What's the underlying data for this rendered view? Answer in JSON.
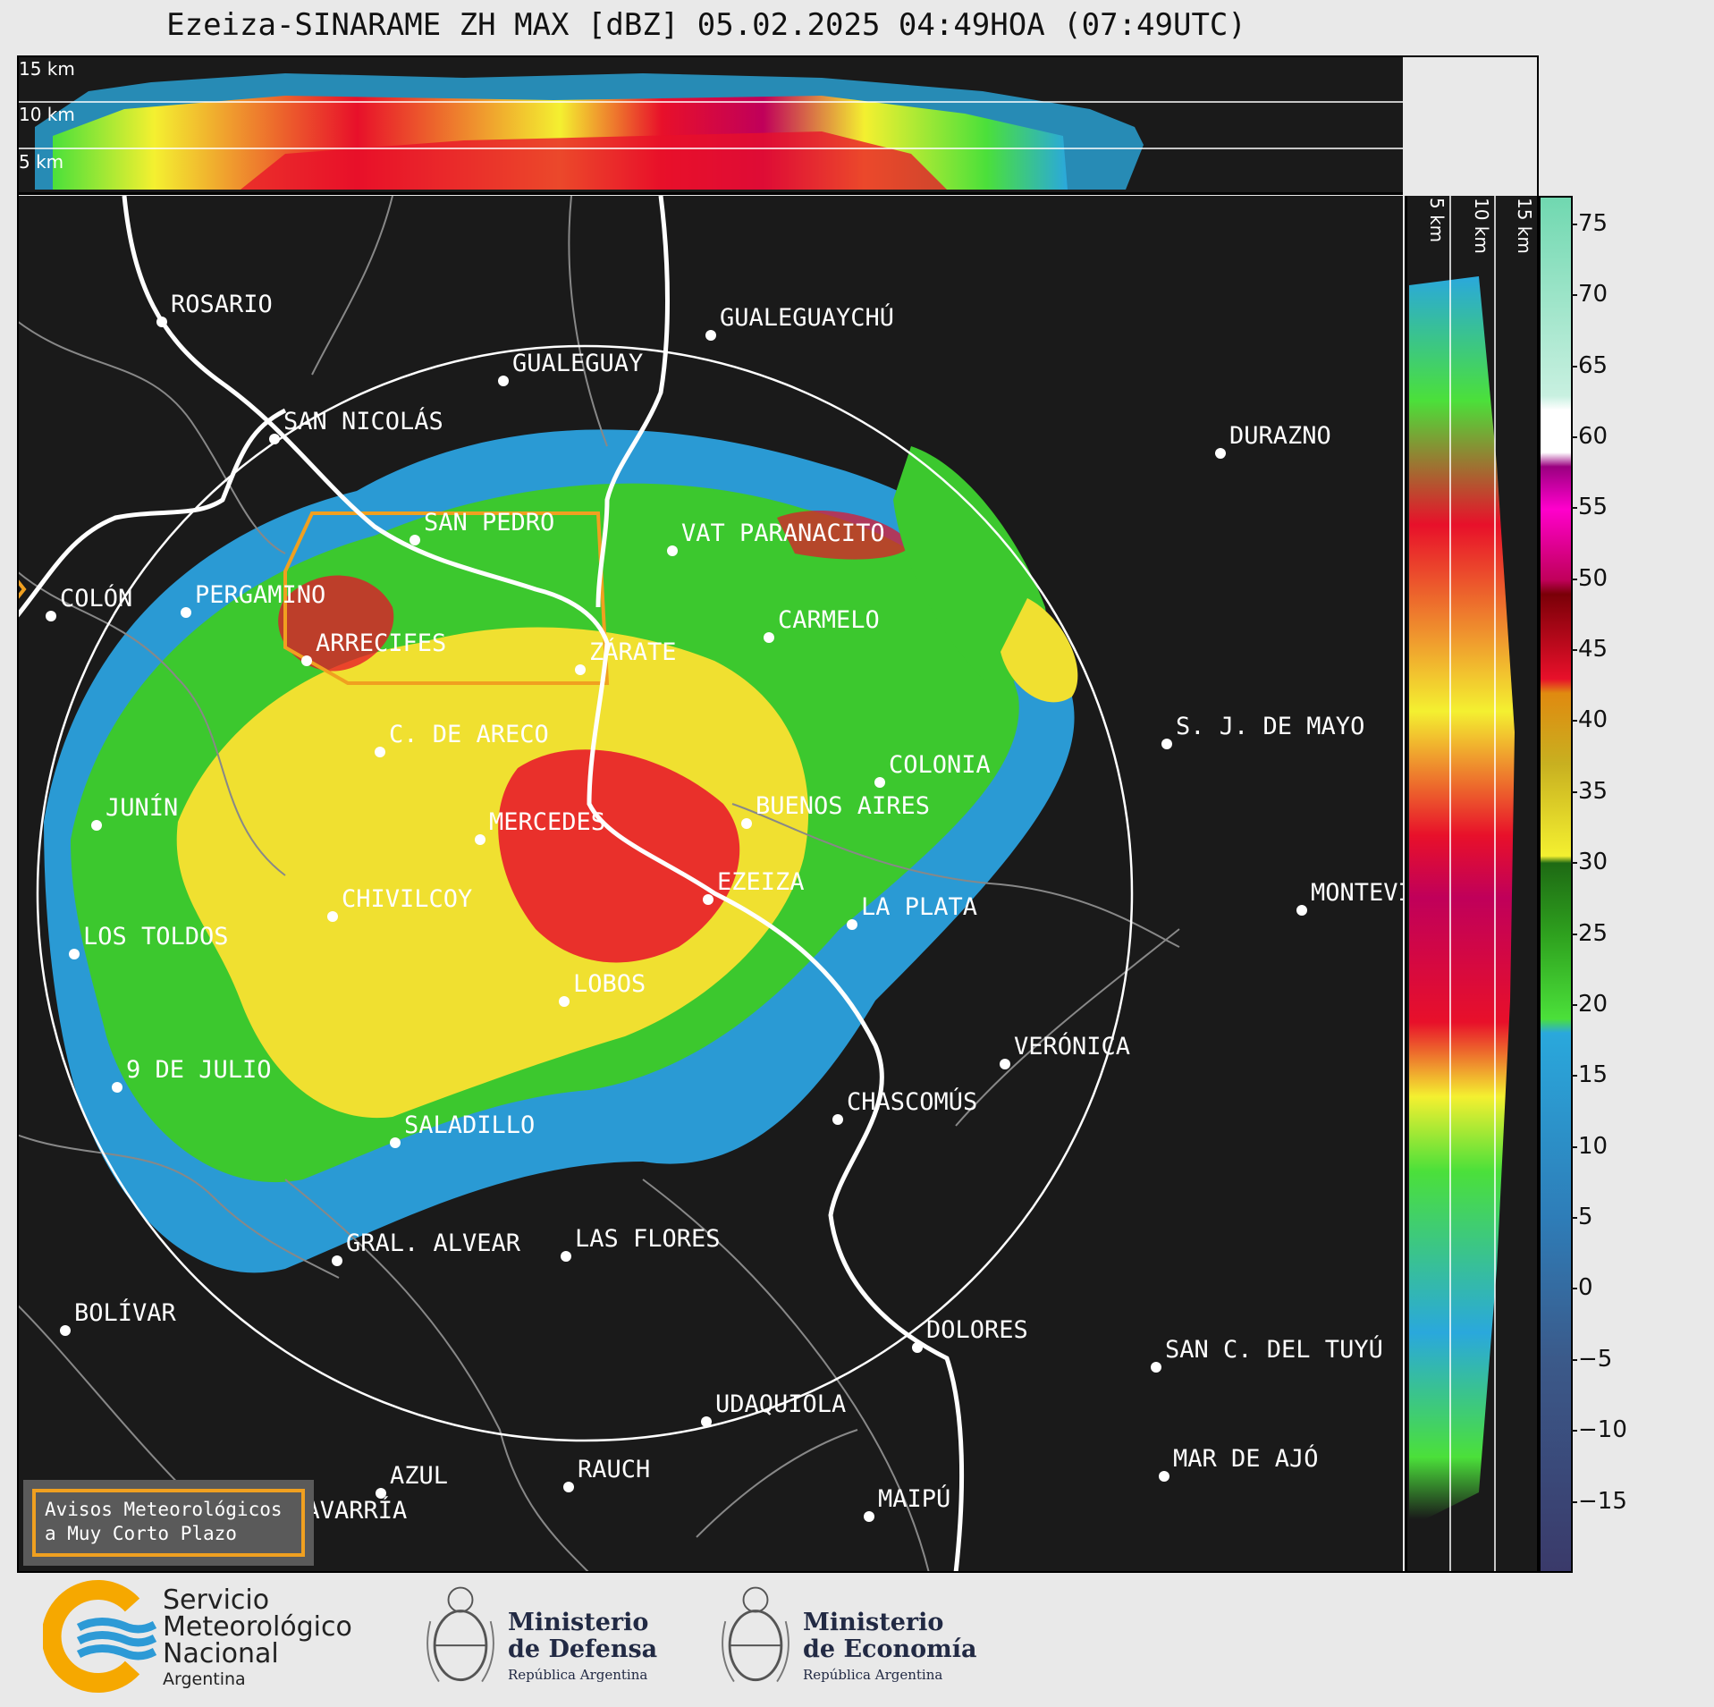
{
  "title": "Ezeiza-SINARAME ZH MAX [dBZ] 05.02.2025 04:49HOA (07:49UTC)",
  "top_altitudes": [
    "15 km",
    "10 km",
    "5 km"
  ],
  "side_altitudes": [
    "5 km",
    "10 km",
    "15 km"
  ],
  "cities": [
    {
      "name": "ROSARIO"
    },
    {
      "name": "GUALEGUAYCHÚ"
    },
    {
      "name": "GUALEGUAY"
    },
    {
      "name": "SAN NICOLÁS"
    },
    {
      "name": "DURAZNO"
    },
    {
      "name": "SAN PEDRO"
    },
    {
      "name": "VAT PARANACITO"
    },
    {
      "name": "COLÓN"
    },
    {
      "name": "PERGAMINO"
    },
    {
      "name": "CARMELO"
    },
    {
      "name": "ARRECIFES"
    },
    {
      "name": "ZÁRATE"
    },
    {
      "name": "S. J. DE MAYO"
    },
    {
      "name": "C. DE ARECO"
    },
    {
      "name": "COLONIA"
    },
    {
      "name": "JUNÍN"
    },
    {
      "name": "BUENOS AIRES"
    },
    {
      "name": "MERCEDES"
    },
    {
      "name": "EZEIZA"
    },
    {
      "name": "MONTEVI"
    },
    {
      "name": "CHIVILCOY"
    },
    {
      "name": "LA PLATA"
    },
    {
      "name": "LOS TOLDOS"
    },
    {
      "name": "LOBOS"
    },
    {
      "name": "VERÓNICA"
    },
    {
      "name": "9 DE JULIO"
    },
    {
      "name": "CHASCOMÚS"
    },
    {
      "name": "SALADILLO"
    },
    {
      "name": "GRAL. ALVEAR"
    },
    {
      "name": "LAS FLORES"
    },
    {
      "name": "BOLÍVAR"
    },
    {
      "name": "DOLORES"
    },
    {
      "name": "SAN C. DEL TUYÚ"
    },
    {
      "name": "UDAQUIOLA"
    },
    {
      "name": "AZUL"
    },
    {
      "name": "RAUCH"
    },
    {
      "name": "MAR DE AJÓ"
    },
    {
      "name": "MAIPÚ"
    },
    {
      "name": "OLAVARRÍA"
    }
  ],
  "colorbar": {
    "min": -20,
    "max": 77,
    "ticks": [
      "75",
      "70",
      "65",
      "60",
      "55",
      "50",
      "45",
      "40",
      "35",
      "30",
      "25",
      "20",
      "15",
      "10",
      "5",
      "0",
      "−5",
      "−10",
      "−15"
    ],
    "tick_values": [
      75,
      70,
      65,
      60,
      55,
      50,
      45,
      40,
      35,
      30,
      25,
      20,
      15,
      10,
      5,
      0,
      -5,
      -10,
      -15
    ],
    "stops": [
      {
        "v": -20,
        "c": "#3a3a6a"
      },
      {
        "v": -5,
        "c": "#3b5a8a"
      },
      {
        "v": 5,
        "c": "#2e7db8"
      },
      {
        "v": 18,
        "c": "#2aa8dc"
      },
      {
        "v": 19,
        "c": "#4be03a"
      },
      {
        "v": 25,
        "c": "#2ea01e"
      },
      {
        "v": 30,
        "c": "#1e6a14"
      },
      {
        "v": 30.5,
        "c": "#f4f030"
      },
      {
        "v": 37,
        "c": "#c8b020"
      },
      {
        "v": 42,
        "c": "#e08a10"
      },
      {
        "v": 43,
        "c": "#e8102a"
      },
      {
        "v": 49,
        "c": "#7a0008"
      },
      {
        "v": 50,
        "c": "#c0005a"
      },
      {
        "v": 55,
        "c": "#ff00cc"
      },
      {
        "v": 58,
        "c": "#9a0080"
      },
      {
        "v": 59,
        "c": "#ffffff"
      },
      {
        "v": 62,
        "c": "#ffffff"
      },
      {
        "v": 63,
        "c": "#c8f0e0"
      },
      {
        "v": 77,
        "c": "#70d8b0"
      }
    ]
  },
  "alert_box": {
    "line1": "Avisos Meteorológicos",
    "line2": "a Muy Corto Plazo"
  },
  "footer": {
    "smn": {
      "line1": "Servicio",
      "line2": "Meteorológico",
      "line3": "Nacional",
      "line4": "Argentina"
    },
    "defensa": {
      "line1": "Ministerio",
      "line2": "de Defensa",
      "line3": "República Argentina"
    },
    "economia": {
      "line1": "Ministerio",
      "line2": "de Economía",
      "line3": "República Argentina"
    }
  },
  "colors": {
    "panel_bg": "#1a1a1a",
    "range_ring": "#ffffff",
    "province_border": "#888888",
    "highlight_border": "#f0a020"
  }
}
